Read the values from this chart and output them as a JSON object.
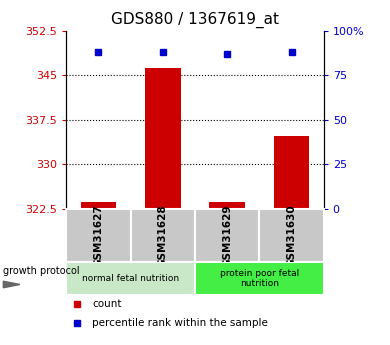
{
  "title": "GDS880 / 1367619_at",
  "samples": [
    "GSM31627",
    "GSM31628",
    "GSM31629",
    "GSM31630"
  ],
  "count_values": [
    323.6,
    346.3,
    323.7,
    334.8
  ],
  "percentile_values": [
    88,
    88,
    87,
    88
  ],
  "ylim_left": [
    322.5,
    352.5
  ],
  "ylim_right": [
    0,
    100
  ],
  "yticks_left": [
    322.5,
    330,
    337.5,
    345,
    352.5
  ],
  "yticks_right": [
    0,
    25,
    50,
    75,
    100
  ],
  "bar_color": "#cc0000",
  "dot_color": "#0000cc",
  "group1_label": "normal fetal nutrition",
  "group2_label": "protein poor fetal\nnutrition",
  "group_label_name": "growth protocol",
  "legend_count": "count",
  "legend_pct": "percentile rank within the sample",
  "group1_bg": "#c8e8c8",
  "group2_bg": "#44ee44",
  "xtick_bg": "#c8c8c8",
  "bar_width": 0.55
}
